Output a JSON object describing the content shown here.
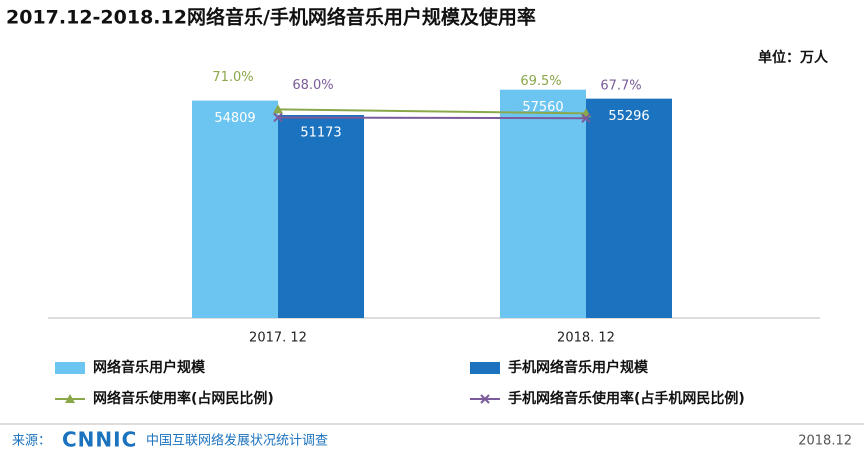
{
  "chart_data": {
    "type": "bar",
    "title": "2017.12-2018.12网络音乐/手机网络音乐用户规模及使用率",
    "unit": "单位：万人",
    "categories": [
      "2017. 12",
      "2018. 12"
    ],
    "ylim": [
      0,
      60000
    ],
    "y2lim": [
      -7,
      82
    ],
    "series": [
      {
        "name": "网络音乐用户规模",
        "type": "bar",
        "color": "#6cc5f0",
        "values": [
          54809,
          57560
        ]
      },
      {
        "name": "手机网络音乐用户规模",
        "type": "bar",
        "color": "#1b72be",
        "values": [
          51173,
          55296
        ]
      },
      {
        "name": "网络音乐使用率(占网民比例)",
        "type": "line",
        "axis": "y2",
        "color": "#8aa84a",
        "marker": "triangle",
        "values": [
          71.0,
          69.5
        ],
        "value_labels": [
          "71.0%",
          "69.5%"
        ]
      },
      {
        "name": "手机网络音乐使用率(占手机网民比例)",
        "type": "line",
        "axis": "y2",
        "color": "#7b5b9b",
        "marker": "x",
        "values": [
          68.0,
          67.7
        ],
        "value_labels": [
          "68.0%",
          "67.7%"
        ]
      }
    ]
  },
  "footer": {
    "source_label": "来源：",
    "logo": "CNNIC",
    "organization": "中国互联网络发展状况统计调查",
    "date": "2018.12"
  }
}
